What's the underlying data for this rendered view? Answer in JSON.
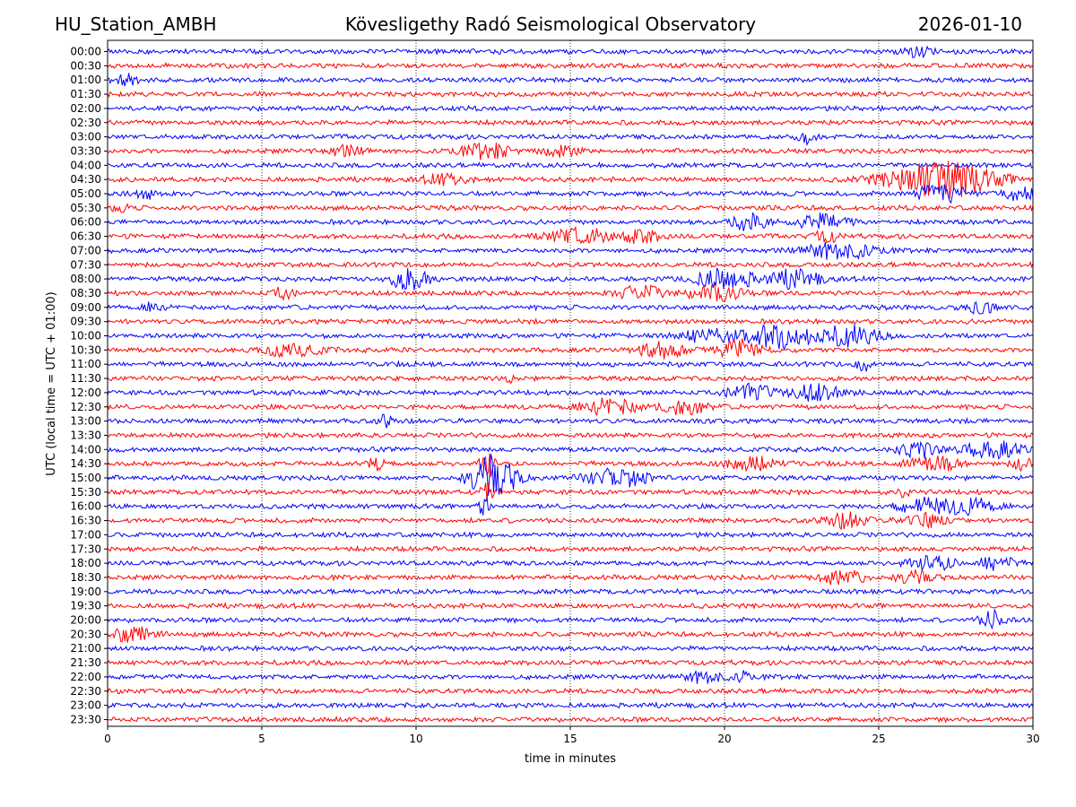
{
  "header": {
    "station": "HU_Station_AMBH",
    "title": "Kövesligethy Radó Seismological Observatory",
    "date": "2026-01-10"
  },
  "chart_data": {
    "type": "line",
    "title": "Kövesligethy Radó Seismological Observatory",
    "subtitle_left": "HU_Station_AMBH",
    "subtitle_right": "2026-01-10",
    "xlabel": "time in minutes",
    "ylabel": "UTC (local time = UTC + 01:00)",
    "xlim": [
      0,
      30
    ],
    "xticks": [
      0,
      5,
      10,
      15,
      20,
      25,
      30
    ],
    "grid": "vertical dotted at x ticks",
    "trace_colors": [
      "#0000ff",
      "#ff0000"
    ],
    "rows": [
      "00:00",
      "00:30",
      "01:00",
      "01:30",
      "02:00",
      "02:30",
      "03:00",
      "03:30",
      "04:00",
      "04:30",
      "05:00",
      "05:30",
      "06:00",
      "06:30",
      "07:00",
      "07:30",
      "08:00",
      "08:30",
      "09:00",
      "09:30",
      "10:00",
      "10:30",
      "11:00",
      "11:30",
      "12:00",
      "12:30",
      "13:00",
      "13:30",
      "14:00",
      "14:30",
      "15:00",
      "15:30",
      "16:00",
      "16:30",
      "17:00",
      "17:30",
      "18:00",
      "18:30",
      "19:00",
      "19:30",
      "20:00",
      "20:30",
      "21:00",
      "21:30",
      "22:00",
      "22:30",
      "23:00",
      "23:30"
    ],
    "baseline_amplitude": 3,
    "events": [
      {
        "row": "00:00",
        "t": 26.3,
        "dur": 0.8,
        "amp": 6
      },
      {
        "row": "01:00",
        "t": 0.5,
        "dur": 0.8,
        "amp": 6
      },
      {
        "row": "03:00",
        "t": 22.7,
        "dur": 0.6,
        "amp": 6
      },
      {
        "row": "03:30",
        "t": 7.7,
        "dur": 1.2,
        "amp": 5
      },
      {
        "row": "03:30",
        "t": 12.3,
        "dur": 1.6,
        "amp": 8
      },
      {
        "row": "03:30",
        "t": 14.7,
        "dur": 1.0,
        "amp": 7
      },
      {
        "row": "04:30",
        "t": 11.0,
        "dur": 1.4,
        "amp": 6
      },
      {
        "row": "04:30",
        "t": 27.0,
        "dur": 3.4,
        "amp": 20
      },
      {
        "row": "05:00",
        "t": 27.0,
        "dur": 1.6,
        "amp": 10
      },
      {
        "row": "05:00",
        "t": 29.5,
        "dur": 1.0,
        "amp": 8
      },
      {
        "row": "05:00",
        "t": 1.2,
        "dur": 1.0,
        "amp": 5
      },
      {
        "row": "05:30",
        "t": 0.4,
        "dur": 0.6,
        "amp": 5
      },
      {
        "row": "06:00",
        "t": 20.8,
        "dur": 1.2,
        "amp": 9
      },
      {
        "row": "06:00",
        "t": 23.2,
        "dur": 1.8,
        "amp": 8
      },
      {
        "row": "06:30",
        "t": 15.3,
        "dur": 2.0,
        "amp": 9
      },
      {
        "row": "06:30",
        "t": 17.3,
        "dur": 1.2,
        "amp": 7
      },
      {
        "row": "06:30",
        "t": 23.3,
        "dur": 0.8,
        "amp": 6
      },
      {
        "row": "07:00",
        "t": 23.7,
        "dur": 2.0,
        "amp": 11
      },
      {
        "row": "08:00",
        "t": 9.8,
        "dur": 1.2,
        "amp": 12
      },
      {
        "row": "08:00",
        "t": 20.0,
        "dur": 2.0,
        "amp": 11
      },
      {
        "row": "08:00",
        "t": 22.3,
        "dur": 1.6,
        "amp": 10
      },
      {
        "row": "08:30",
        "t": 5.7,
        "dur": 0.6,
        "amp": 8
      },
      {
        "row": "08:30",
        "t": 17.3,
        "dur": 1.4,
        "amp": 8
      },
      {
        "row": "08:30",
        "t": 19.7,
        "dur": 1.6,
        "amp": 9
      },
      {
        "row": "09:00",
        "t": 28.3,
        "dur": 0.8,
        "amp": 9
      },
      {
        "row": "09:00",
        "t": 1.5,
        "dur": 0.6,
        "amp": 5
      },
      {
        "row": "10:00",
        "t": 21.8,
        "dur": 2.0,
        "amp": 13
      },
      {
        "row": "10:00",
        "t": 24.0,
        "dur": 1.8,
        "amp": 11
      },
      {
        "row": "10:00",
        "t": 19.5,
        "dur": 2.0,
        "amp": 7
      },
      {
        "row": "10:30",
        "t": 6.0,
        "dur": 2.0,
        "amp": 6
      },
      {
        "row": "10:30",
        "t": 18.0,
        "dur": 1.4,
        "amp": 10
      },
      {
        "row": "10:30",
        "t": 20.5,
        "dur": 1.4,
        "amp": 10
      },
      {
        "row": "11:00",
        "t": 24.5,
        "dur": 0.4,
        "amp": 8
      },
      {
        "row": "11:30",
        "t": 13.0,
        "dur": 0.3,
        "amp": 6
      },
      {
        "row": "12:00",
        "t": 20.8,
        "dur": 1.4,
        "amp": 9
      },
      {
        "row": "12:00",
        "t": 23.0,
        "dur": 1.6,
        "amp": 9
      },
      {
        "row": "12:30",
        "t": 16.3,
        "dur": 1.8,
        "amp": 9
      },
      {
        "row": "12:30",
        "t": 18.7,
        "dur": 1.4,
        "amp": 8
      },
      {
        "row": "13:00",
        "t": 9.0,
        "dur": 0.4,
        "amp": 6
      },
      {
        "row": "14:00",
        "t": 26.3,
        "dur": 1.2,
        "amp": 9
      },
      {
        "row": "14:00",
        "t": 28.7,
        "dur": 1.8,
        "amp": 9
      },
      {
        "row": "14:30",
        "t": 12.3,
        "dur": 0.4,
        "amp": 22
      },
      {
        "row": "14:30",
        "t": 21.0,
        "dur": 1.6,
        "amp": 8
      },
      {
        "row": "14:30",
        "t": 26.8,
        "dur": 1.6,
        "amp": 8
      },
      {
        "row": "14:30",
        "t": 29.7,
        "dur": 0.6,
        "amp": 9
      },
      {
        "row": "14:30",
        "t": 8.7,
        "dur": 0.8,
        "amp": 7
      },
      {
        "row": "15:00",
        "t": 12.5,
        "dur": 1.4,
        "amp": 26
      },
      {
        "row": "15:00",
        "t": 16.5,
        "dur": 2.0,
        "amp": 10
      },
      {
        "row": "15:30",
        "t": 12.3,
        "dur": 0.4,
        "amp": 9
      },
      {
        "row": "15:30",
        "t": 25.8,
        "dur": 0.3,
        "amp": 7
      },
      {
        "row": "16:00",
        "t": 26.5,
        "dur": 1.6,
        "amp": 9
      },
      {
        "row": "16:00",
        "t": 28.0,
        "dur": 1.4,
        "amp": 9
      },
      {
        "row": "16:00",
        "t": 12.2,
        "dur": 0.3,
        "amp": 12
      },
      {
        "row": "16:30",
        "t": 24.0,
        "dur": 1.2,
        "amp": 9
      },
      {
        "row": "16:30",
        "t": 26.5,
        "dur": 1.2,
        "amp": 8
      },
      {
        "row": "18:00",
        "t": 26.7,
        "dur": 1.6,
        "amp": 8
      },
      {
        "row": "18:00",
        "t": 28.8,
        "dur": 1.0,
        "amp": 10
      },
      {
        "row": "18:30",
        "t": 23.8,
        "dur": 1.4,
        "amp": 9
      },
      {
        "row": "18:30",
        "t": 26.2,
        "dur": 1.2,
        "amp": 7
      },
      {
        "row": "20:00",
        "t": 28.7,
        "dur": 0.8,
        "amp": 10
      },
      {
        "row": "20:30",
        "t": 0.8,
        "dur": 1.4,
        "amp": 8
      },
      {
        "row": "22:00",
        "t": 19.4,
        "dur": 1.2,
        "amp": 8
      },
      {
        "row": "22:00",
        "t": 20.6,
        "dur": 0.4,
        "amp": 6
      }
    ]
  }
}
